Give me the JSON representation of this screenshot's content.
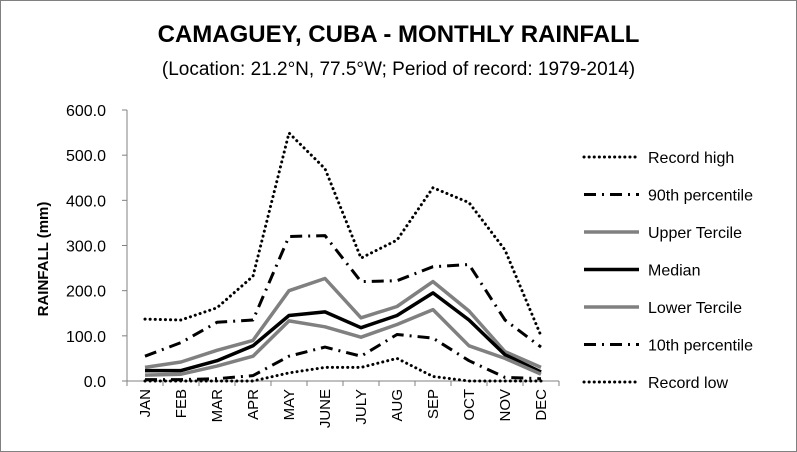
{
  "chart_data": {
    "type": "line",
    "title": "CAMAGUEY, CUBA - MONTHLY RAINFALL",
    "subtitle": "(Location: 21.2°N, 77.5°W; Period of record: 1979-2014)",
    "ylabel": "RAINFALL (mm)",
    "xlabel": "",
    "ylim": [
      0,
      600
    ],
    "yticks": [
      "0.0",
      "100.0",
      "200.0",
      "300.0",
      "400.0",
      "500.0",
      "600.0"
    ],
    "grid": false,
    "legend_position": "right",
    "categories": [
      "JAN",
      "FEB",
      "MAR",
      "APR",
      "MAY",
      "JUNE",
      "JULY",
      "AUG",
      "SEP",
      "OCT",
      "NOV",
      "DEC"
    ],
    "series": [
      {
        "name": "Record high",
        "style": "dotted",
        "color": "#000000",
        "values": [
          137,
          135,
          162,
          232,
          549,
          470,
          272,
          312,
          428,
          395,
          290,
          100
        ]
      },
      {
        "name": "90th percentile",
        "style": "dashdot",
        "color": "#000000",
        "values": [
          55,
          85,
          130,
          135,
          320,
          322,
          220,
          222,
          253,
          258,
          135,
          75
        ]
      },
      {
        "name": "Upper Tercile",
        "style": "solid-gray",
        "color": "#808080",
        "values": [
          30,
          42,
          68,
          90,
          200,
          227,
          140,
          165,
          220,
          155,
          65,
          30
        ]
      },
      {
        "name": "Median",
        "style": "solid-black",
        "color": "#000000",
        "values": [
          23,
          23,
          45,
          78,
          145,
          153,
          118,
          145,
          195,
          135,
          58,
          20
        ]
      },
      {
        "name": "Lower Tercile",
        "style": "solid-gray",
        "color": "#808080",
        "values": [
          13,
          15,
          33,
          55,
          133,
          120,
          97,
          125,
          158,
          78,
          50,
          15
        ]
      },
      {
        "name": "10th percentile",
        "style": "dashdot",
        "color": "#000000",
        "values": [
          3,
          3,
          5,
          12,
          55,
          75,
          55,
          103,
          95,
          45,
          8,
          5
        ]
      },
      {
        "name": "Record low",
        "style": "dotted",
        "color": "#000000",
        "values": [
          0,
          0,
          0,
          0,
          18,
          30,
          30,
          50,
          10,
          0,
          0,
          0
        ]
      }
    ]
  }
}
